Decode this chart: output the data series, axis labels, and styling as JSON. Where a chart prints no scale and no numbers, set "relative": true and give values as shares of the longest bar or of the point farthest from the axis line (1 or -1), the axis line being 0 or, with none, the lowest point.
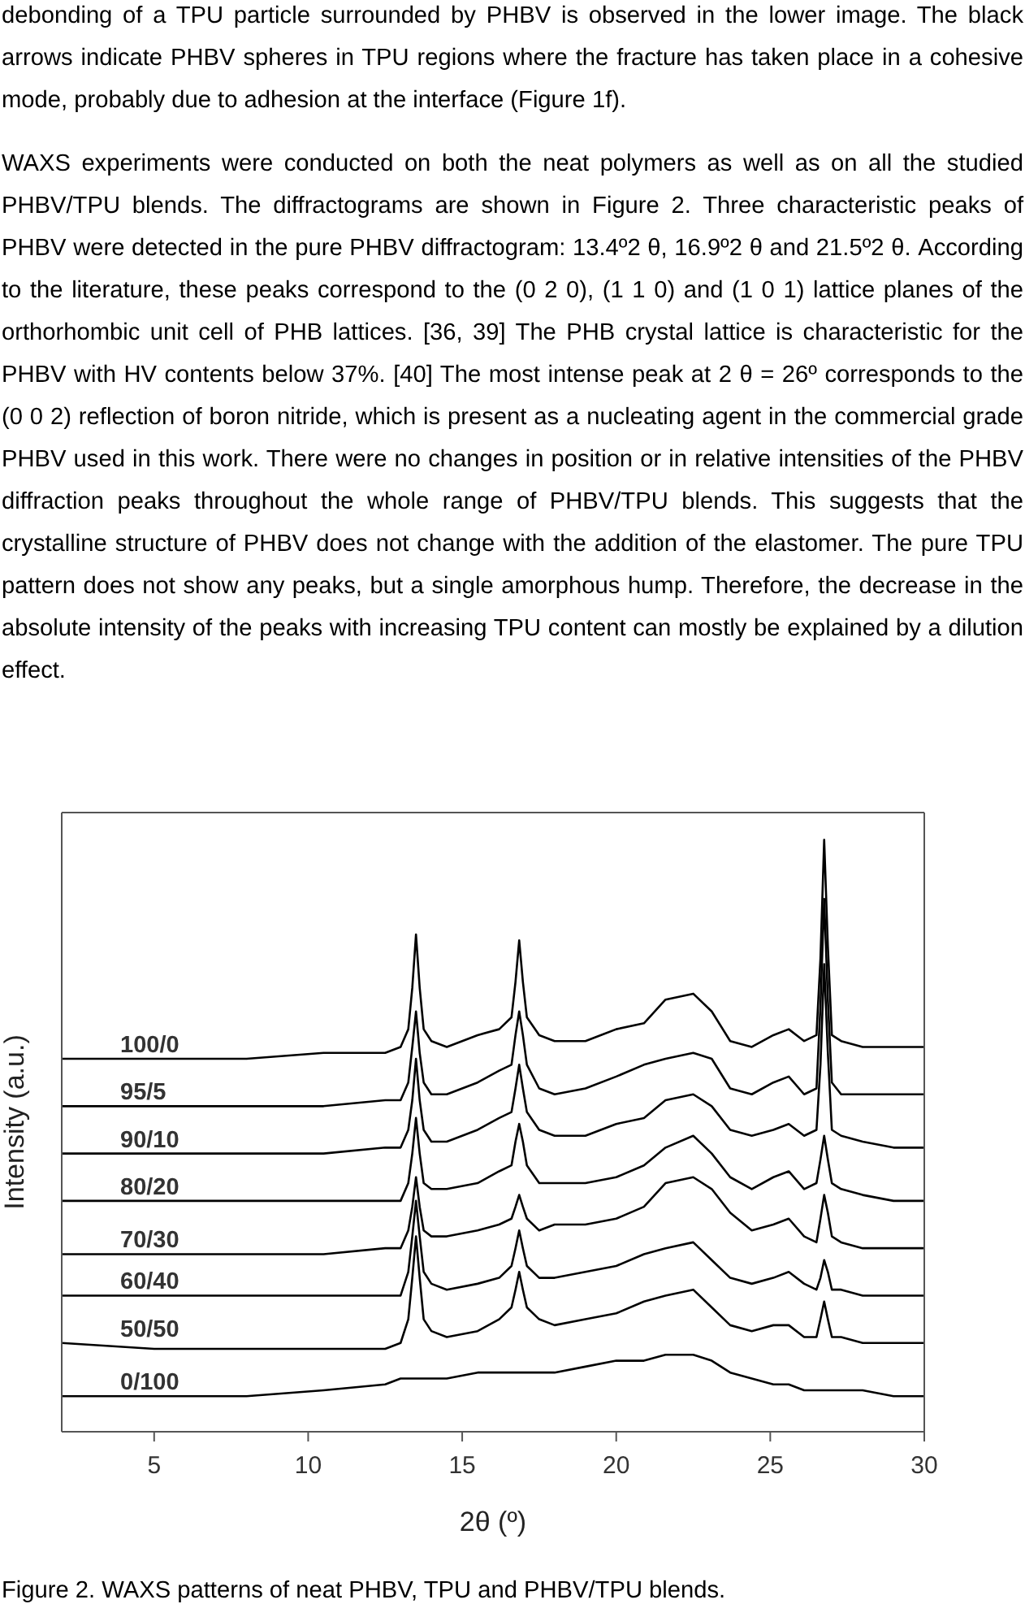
{
  "chart_data": {
    "type": "line",
    "xlabel": "2θ (º)",
    "ylabel": "Intensity (a.u.)",
    "relative": true,
    "line_style": "solid",
    "annotations": [
      "debonding of a TPU particle surrounded by PHBV is observed in the lower image. The black arrows indicate PHBV spheres in TPU regions where the fracture has taken place in a cohesive mode, probably due to adhesion at the interface (Figure 1f).",
      "WAXS experiments were conducted on both the neat polymers as well as on all the studied PHBV/TPU blends. The diffractograms are shown in Figure 2. Three characteristic peaks of PHBV were detected in the pure PHBV diffractogram: 13.4º2 θ, 16.9º2 θ and 21.5º2 θ. According to the literature, these peaks correspond to the (0 2 0), (1 1 0) and (1 0 1) lattice planes of the orthorhombic unit cell of PHB lattices. [36, 39] The PHB crystal lattice is characteristic for the PHBV with HV contents below 37%. [40] The most intense peak at 2 θ = 26º corresponds to the (0 0 2) reflection of boron nitride, which is present as a nucleating agent in the commercial grade PHBV used in this work. There were no changes in position or in relative intensities of the PHBV diffraction peaks throughout the whole range of PHBV/TPU blends. This suggests that the crystalline structure of PHBV does not change with the addition of the elastomer. The pure TPU pattern does not show any peaks, but a single amorphous hump. Therefore, the decrease in the absolute intensity of the peaks with increasing TPU content can mostly be explained by a dilution effect.",
      "Figure 2. WAXS patterns of neat PHBV, TPU and PHBV/TPU blends."
    ],
    "x": [
      2,
      5,
      8,
      10.5,
      12.5,
      13.0,
      13.25,
      13.38,
      13.5,
      13.62,
      13.75,
      14.0,
      14.5,
      15.5,
      16.2,
      16.6,
      16.73,
      16.85,
      16.97,
      17.1,
      17.5,
      18.0,
      19.0,
      20.0,
      20.9,
      21.6,
      22.5,
      23.1,
      23.7,
      24.4,
      25.1,
      25.6,
      26.1,
      26.5,
      26.63,
      26.75,
      26.87,
      27.0,
      27.3,
      28.0,
      29.0,
      30
    ],
    "xlim": [
      2,
      30
    ],
    "xticks": [
      5,
      10,
      15,
      20,
      25,
      30
    ],
    "series": [
      {
        "name": "100/0",
        "color": "#000000",
        "values": [
          0.63,
          0.63,
          0.63,
          0.64,
          0.64,
          0.65,
          0.68,
          0.75,
          0.84,
          0.75,
          0.68,
          0.66,
          0.65,
          0.67,
          0.68,
          0.7,
          0.76,
          0.83,
          0.76,
          0.7,
          0.67,
          0.66,
          0.66,
          0.68,
          0.69,
          0.73,
          0.74,
          0.71,
          0.66,
          0.65,
          0.67,
          0.68,
          0.66,
          0.67,
          0.8,
          1.0,
          0.82,
          0.67,
          0.66,
          0.65,
          0.65,
          0.65
        ]
      },
      {
        "name": "95/5",
        "color": "#000000",
        "values": [
          0.55,
          0.55,
          0.55,
          0.55,
          0.56,
          0.56,
          0.59,
          0.65,
          0.71,
          0.64,
          0.59,
          0.57,
          0.57,
          0.59,
          0.61,
          0.62,
          0.67,
          0.71,
          0.67,
          0.62,
          0.58,
          0.57,
          0.58,
          0.6,
          0.62,
          0.63,
          0.64,
          0.63,
          0.58,
          0.57,
          0.59,
          0.6,
          0.57,
          0.58,
          0.72,
          0.9,
          0.73,
          0.59,
          0.57,
          0.57,
          0.57,
          0.57
        ]
      },
      {
        "name": "90/10",
        "color": "#000000",
        "values": [
          0.47,
          0.47,
          0.47,
          0.47,
          0.48,
          0.48,
          0.51,
          0.56,
          0.63,
          0.56,
          0.51,
          0.49,
          0.49,
          0.51,
          0.53,
          0.54,
          0.58,
          0.62,
          0.58,
          0.54,
          0.51,
          0.5,
          0.5,
          0.52,
          0.53,
          0.56,
          0.57,
          0.55,
          0.51,
          0.5,
          0.51,
          0.52,
          0.5,
          0.51,
          0.62,
          0.79,
          0.64,
          0.51,
          0.5,
          0.49,
          0.48,
          0.48
        ]
      },
      {
        "name": "80/20",
        "color": "#000000",
        "values": [
          0.39,
          0.39,
          0.39,
          0.39,
          0.39,
          0.39,
          0.42,
          0.47,
          0.53,
          0.47,
          0.42,
          0.41,
          0.41,
          0.42,
          0.44,
          0.45,
          0.49,
          0.52,
          0.49,
          0.45,
          0.42,
          0.42,
          0.42,
          0.43,
          0.45,
          0.48,
          0.5,
          0.47,
          0.43,
          0.41,
          0.43,
          0.44,
          0.41,
          0.42,
          0.46,
          0.5,
          0.46,
          0.42,
          0.41,
          0.4,
          0.39,
          0.39
        ]
      },
      {
        "name": "70/30",
        "color": "#000000",
        "values": [
          0.3,
          0.3,
          0.3,
          0.3,
          0.31,
          0.31,
          0.34,
          0.38,
          0.43,
          0.38,
          0.34,
          0.33,
          0.33,
          0.34,
          0.35,
          0.36,
          0.38,
          0.4,
          0.38,
          0.36,
          0.34,
          0.35,
          0.35,
          0.36,
          0.38,
          0.42,
          0.43,
          0.41,
          0.37,
          0.34,
          0.35,
          0.36,
          0.33,
          0.32,
          0.36,
          0.4,
          0.37,
          0.33,
          0.32,
          0.31,
          0.31,
          0.31
        ]
      },
      {
        "name": "60/40",
        "color": "#000000",
        "values": [
          0.23,
          0.23,
          0.23,
          0.23,
          0.23,
          0.23,
          0.27,
          0.33,
          0.39,
          0.33,
          0.27,
          0.25,
          0.24,
          0.25,
          0.26,
          0.28,
          0.31,
          0.34,
          0.31,
          0.28,
          0.26,
          0.26,
          0.27,
          0.28,
          0.3,
          0.31,
          0.32,
          0.29,
          0.26,
          0.25,
          0.26,
          0.27,
          0.25,
          0.24,
          0.26,
          0.29,
          0.27,
          0.24,
          0.24,
          0.23,
          0.23,
          0.23
        ]
      },
      {
        "name": "50/50",
        "color": "#000000",
        "values": [
          0.15,
          0.14,
          0.14,
          0.14,
          0.14,
          0.15,
          0.19,
          0.26,
          0.33,
          0.26,
          0.19,
          0.17,
          0.16,
          0.17,
          0.19,
          0.21,
          0.24,
          0.27,
          0.24,
          0.21,
          0.19,
          0.18,
          0.19,
          0.2,
          0.22,
          0.23,
          0.24,
          0.21,
          0.18,
          0.17,
          0.18,
          0.18,
          0.16,
          0.16,
          0.19,
          0.22,
          0.19,
          0.16,
          0.16,
          0.15,
          0.15,
          0.15
        ]
      },
      {
        "name": "0/100",
        "color": "#000000",
        "values": [
          0.06,
          0.06,
          0.06,
          0.07,
          0.08,
          0.09,
          0.09,
          0.09,
          0.09,
          0.09,
          0.09,
          0.09,
          0.09,
          0.1,
          0.1,
          0.1,
          0.1,
          0.1,
          0.1,
          0.1,
          0.1,
          0.1,
          0.11,
          0.12,
          0.12,
          0.13,
          0.13,
          0.12,
          0.1,
          0.09,
          0.08,
          0.08,
          0.07,
          0.07,
          0.07,
          0.07,
          0.07,
          0.07,
          0.07,
          0.07,
          0.06,
          0.06
        ]
      }
    ]
  }
}
